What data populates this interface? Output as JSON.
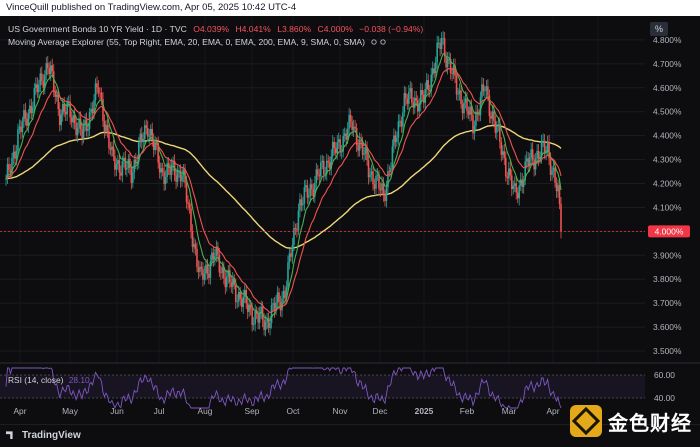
{
  "header": {
    "publisher_line": "VinceQuill published on TradingView.com, Apr 05, 2025 10:42 UTC-4"
  },
  "legend": {
    "symbol": "US Government Bonds 10 YR Yield · 1D · TVC",
    "o": "O4.039%",
    "h": "H4.041%",
    "l": "L3.860%",
    "c": "C4.000%",
    "chg": "−0.038 (−0.94%)",
    "ma_line": "Moving Average Explorer (55, Top Right, EMA, 20, EMA, 0, EMA, 200, EMA, 9, SMA, 0, SMA)",
    "percent_button": "%"
  },
  "rsi": {
    "label": "RSI (14, close)",
    "value": "28.10",
    "axis": [
      "60.00",
      "40.00"
    ]
  },
  "footer": {
    "brand": "TradingView",
    "watermark": "金色财经"
  },
  "colors": {
    "up": "#26a69a",
    "down": "#ef5350",
    "ema20": "#4caf50",
    "ema_red": "#ef5350",
    "ema200": "#f0d77a",
    "rsi": "#7e57c2",
    "price_label_bg": "#f23645"
  },
  "chart_data": {
    "type": "candlestick",
    "title": "US Government Bonds 10 YR Yield",
    "ylim": [
      3.45,
      4.9
    ],
    "y_ticks": [
      "4.800%",
      "4.700%",
      "4.600%",
      "4.500%",
      "4.400%",
      "4.300%",
      "4.200%",
      "4.100%",
      "4.000%",
      "3.900%",
      "3.800%",
      "3.700%",
      "3.600%",
      "3.500%"
    ],
    "x_ticks": [
      "Apr",
      "May",
      "Jun",
      "Jul",
      "Aug",
      "Sep",
      "Oct",
      "Nov",
      "Dec",
      "2025",
      "Feb",
      "Mar",
      "Apr",
      "M"
    ],
    "last_price": "4.000%",
    "keypoints": [
      {
        "date": "2024-03-28",
        "value": 4.2
      },
      {
        "date": "2024-04-05",
        "value": 4.4
      },
      {
        "date": "2024-04-12",
        "value": 4.5
      },
      {
        "date": "2024-04-25",
        "value": 4.7
      },
      {
        "date": "2024-05-03",
        "value": 4.5
      },
      {
        "date": "2024-05-10",
        "value": 4.5
      },
      {
        "date": "2024-05-18",
        "value": 4.4
      },
      {
        "date": "2024-05-29",
        "value": 4.6
      },
      {
        "date": "2024-06-07",
        "value": 4.3
      },
      {
        "date": "2024-06-20",
        "value": 4.25
      },
      {
        "date": "2024-07-01",
        "value": 4.45
      },
      {
        "date": "2024-07-10",
        "value": 4.25
      },
      {
        "date": "2024-07-24",
        "value": 4.25
      },
      {
        "date": "2024-08-05",
        "value": 3.8
      },
      {
        "date": "2024-08-15",
        "value": 3.9
      },
      {
        "date": "2024-08-23",
        "value": 3.8
      },
      {
        "date": "2024-09-10",
        "value": 3.65
      },
      {
        "date": "2024-09-18",
        "value": 3.62
      },
      {
        "date": "2024-10-01",
        "value": 3.75
      },
      {
        "date": "2024-10-10",
        "value": 4.1
      },
      {
        "date": "2024-10-25",
        "value": 4.25
      },
      {
        "date": "2024-11-05",
        "value": 4.35
      },
      {
        "date": "2024-11-15",
        "value": 4.45
      },
      {
        "date": "2024-11-27",
        "value": 4.25
      },
      {
        "date": "2024-12-06",
        "value": 4.15
      },
      {
        "date": "2024-12-20",
        "value": 4.55
      },
      {
        "date": "2025-01-02",
        "value": 4.55
      },
      {
        "date": "2025-01-14",
        "value": 4.8
      },
      {
        "date": "2025-01-24",
        "value": 4.6
      },
      {
        "date": "2025-02-04",
        "value": 4.45
      },
      {
        "date": "2025-02-12",
        "value": 4.6
      },
      {
        "date": "2025-02-25",
        "value": 4.3
      },
      {
        "date": "2025-03-04",
        "value": 4.15
      },
      {
        "date": "2025-03-14",
        "value": 4.3
      },
      {
        "date": "2025-03-26",
        "value": 4.35
      },
      {
        "date": "2025-04-02",
        "value": 4.15
      },
      {
        "date": "2025-04-04",
        "value": 4.0
      }
    ]
  }
}
